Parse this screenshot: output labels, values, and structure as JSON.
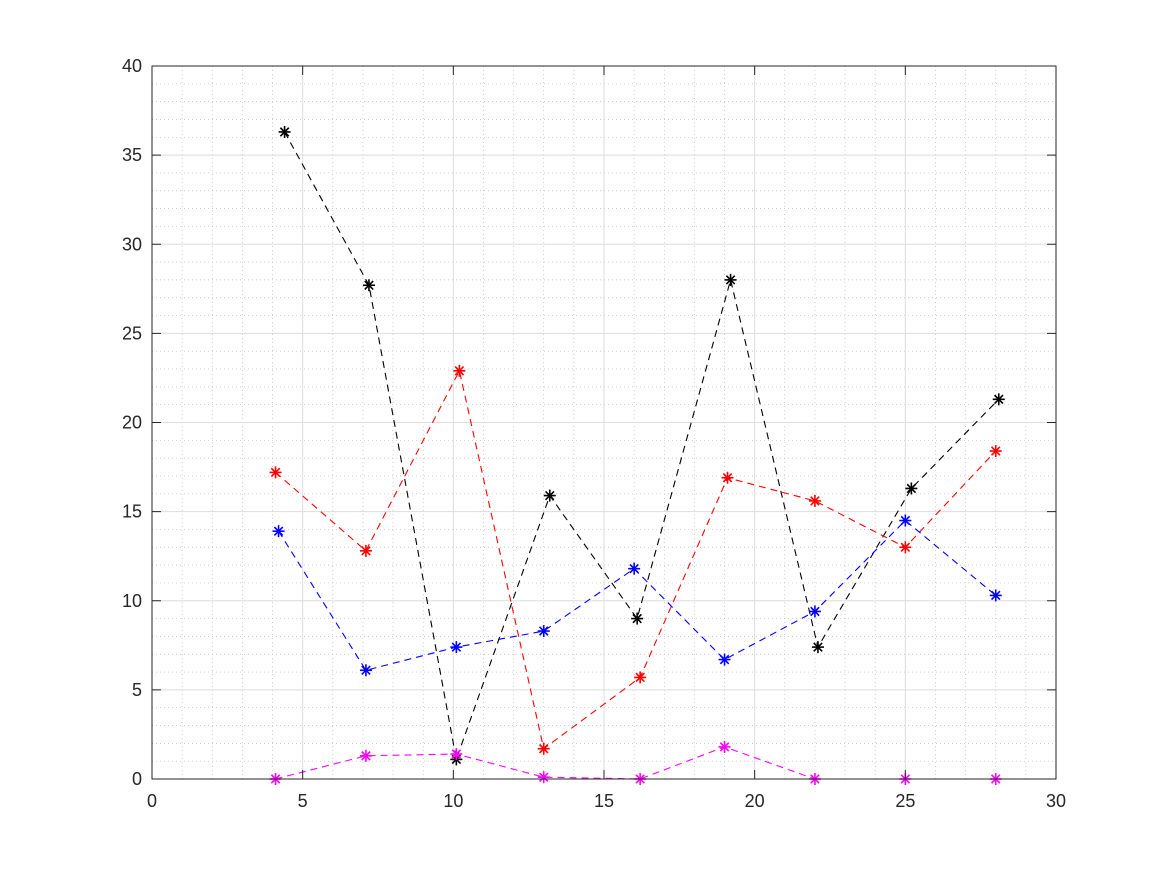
{
  "chart_data": {
    "type": "line",
    "title": "",
    "xlabel": "",
    "ylabel": "",
    "xlim": [
      0,
      30
    ],
    "ylim": [
      0,
      40
    ],
    "x_ticks": [
      "0",
      "5",
      "10",
      "15",
      "20",
      "25",
      "30"
    ],
    "y_ticks": [
      "0",
      "5",
      "10",
      "15",
      "20",
      "25",
      "30",
      "35",
      "40"
    ],
    "grid": true,
    "minor_grid": true,
    "line_style": "dashed",
    "marker": "asterisk",
    "series": [
      {
        "color": "#000000",
        "x": [
          4.4,
          7.2,
          10.1,
          13.2,
          16.1,
          19.2,
          22.1,
          25.2,
          28.1
        ],
        "y": [
          36.3,
          27.7,
          1.1,
          15.9,
          9.0,
          28.0,
          7.4,
          16.3,
          21.3
        ]
      },
      {
        "color": "#ff0000",
        "x": [
          4.1,
          7.1,
          10.2,
          13.0,
          16.2,
          19.1,
          22.0,
          25.0,
          28.0
        ],
        "y": [
          17.2,
          12.8,
          22.9,
          1.7,
          5.7,
          16.9,
          15.6,
          13.0,
          18.4
        ]
      },
      {
        "color": "#0000ff",
        "x": [
          4.2,
          7.1,
          10.1,
          13.0,
          16.0,
          19.0,
          22.0,
          25.0,
          28.0
        ],
        "y": [
          13.9,
          6.1,
          7.4,
          8.3,
          11.8,
          6.7,
          9.4,
          14.5,
          10.3
        ]
      },
      {
        "color": "#ff00ff",
        "x": [
          4.1,
          7.1,
          10.1,
          13.0,
          16.2,
          19.0,
          22.0,
          25.0,
          28.0
        ],
        "y": [
          0.0,
          1.3,
          1.4,
          0.1,
          0.0,
          1.8,
          0.0,
          0.0,
          0.0
        ]
      }
    ]
  }
}
